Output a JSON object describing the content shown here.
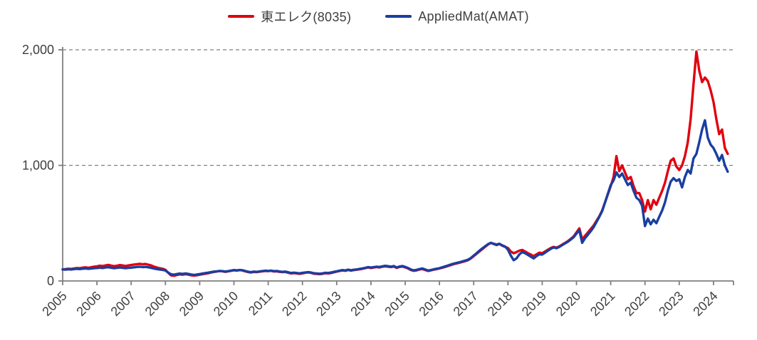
{
  "chart_data": {
    "type": "line",
    "title": "",
    "xlabel": "",
    "ylabel": "",
    "grid": "horizontal-dashed",
    "legend_position": "top-center",
    "ylim": [
      0,
      2000
    ],
    "y_ticks": [
      {
        "value": 0,
        "label": "0"
      },
      {
        "value": 1000,
        "label": "1,000"
      },
      {
        "value": 2000,
        "label": "2,000"
      }
    ],
    "x_tick_labels": [
      "2005",
      "2006",
      "2007",
      "2008",
      "2009",
      "2010",
      "2011",
      "2012",
      "2013",
      "2014",
      "2015",
      "2016",
      "2017",
      "2018",
      "2019",
      "2020",
      "2021",
      "2022",
      "2023",
      "2024"
    ],
    "x_start_year": 2005,
    "x_step": "monthly",
    "axis_color": "#7f7f7f",
    "label_color": "#3f3f3f",
    "series": [
      {
        "name": "東エレク(8035)",
        "color": "#e1000f",
        "values": [
          100,
          103,
          106,
          104,
          108,
          112,
          110,
          115,
          118,
          114,
          119,
          124,
          127,
          132,
          129,
          134,
          139,
          133,
          128,
          132,
          137,
          134,
          130,
          134,
          138,
          142,
          145,
          148,
          144,
          147,
          141,
          134,
          124,
          116,
          110,
          105,
          96,
          70,
          48,
          45,
          52,
          57,
          54,
          59,
          55,
          50,
          46,
          50,
          54,
          59,
          63,
          67,
          73,
          78,
          82,
          86,
          83,
          79,
          83,
          88,
          93,
          90,
          94,
          91,
          83,
          77,
          74,
          78,
          76,
          80,
          84,
          87,
          85,
          88,
          82,
          84,
          79,
          76,
          78,
          71,
          65,
          68,
          65,
          62,
          66,
          71,
          74,
          70,
          63,
          61,
          59,
          62,
          67,
          65,
          69,
          75,
          81,
          86,
          91,
          88,
          95,
          90,
          94,
          97,
          101,
          105,
          111,
          117,
          112,
          116,
          120,
          117,
          123,
          127,
          124,
          120,
          125,
          113,
          121,
          125,
          118,
          108,
          95,
          88,
          92,
          99,
          104,
          95,
          87,
          92,
          98,
          103,
          108,
          115,
          122,
          130,
          138,
          146,
          152,
          158,
          165,
          172,
          180,
          195,
          215,
          235,
          255,
          275,
          295,
          315,
          330,
          320,
          310,
          320,
          305,
          295,
          285,
          255,
          240,
          250,
          262,
          268,
          255,
          240,
          228,
          215,
          230,
          245,
          240,
          255,
          270,
          285,
          295,
          288,
          300,
          315,
          330,
          345,
          365,
          385,
          420,
          455,
          360,
          390,
          420,
          450,
          480,
          520,
          560,
          610,
          680,
          750,
          820,
          900,
          1080,
          950,
          1000,
          940,
          880,
          900,
          820,
          760,
          760,
          700,
          600,
          700,
          620,
          700,
          660,
          720,
          780,
          850,
          950,
          1040,
          1060,
          990,
          960,
          1000,
          1080,
          1200,
          1400,
          1700,
          1985,
          1820,
          1720,
          1760,
          1730,
          1650,
          1550,
          1400,
          1270,
          1310,
          1150,
          1100
        ]
      },
      {
        "name": "AppliedMat(AMAT)",
        "color": "#1a3ea1",
        "values": [
          100,
          98,
          101,
          99,
          103,
          105,
          103,
          106,
          108,
          105,
          107,
          110,
          112,
          115,
          112,
          116,
          119,
          114,
          110,
          113,
          116,
          113,
          110,
          113,
          115,
          118,
          121,
          123,
          120,
          122,
          118,
          113,
          107,
          103,
          99,
          96,
          90,
          72,
          58,
          54,
          60,
          64,
          61,
          65,
          61,
          56,
          52,
          56,
          60,
          64,
          68,
          72,
          77,
          81,
          84,
          87,
          85,
          82,
          85,
          90,
          94,
          92,
          95,
          93,
          86,
          80,
          77,
          81,
          79,
          83,
          86,
          89,
          87,
          90,
          85,
          87,
          82,
          79,
          81,
          75,
          69,
          72,
          69,
          66,
          70,
          74,
          77,
          73,
          67,
          65,
          63,
          66,
          71,
          69,
          73,
          79,
          84,
          89,
          94,
          91,
          98,
          93,
          97,
          100,
          104,
          108,
          114,
          120,
          116,
          120,
          124,
          121,
          127,
          131,
          128,
          124,
          129,
          117,
          125,
          129,
          122,
          112,
          99,
          92,
          96,
          103,
          108,
          99,
          90,
          95,
          101,
          106,
          111,
          118,
          126,
          134,
          142,
          150,
          156,
          162,
          169,
          176,
          184,
          199,
          220,
          240,
          262,
          282,
          300,
          318,
          330,
          322,
          315,
          322,
          308,
          298,
          270,
          220,
          180,
          195,
          230,
          250,
          240,
          225,
          210,
          195,
          215,
          230,
          228,
          245,
          262,
          278,
          290,
          283,
          295,
          310,
          325,
          340,
          358,
          378,
          410,
          440,
          330,
          370,
          400,
          430,
          465,
          510,
          555,
          605,
          680,
          755,
          830,
          870,
          940,
          900,
          930,
          880,
          830,
          850,
          780,
          720,
          700,
          650,
          475,
          540,
          490,
          530,
          500,
          555,
          610,
          680,
          780,
          860,
          890,
          865,
          880,
          810,
          900,
          960,
          930,
          1060,
          1100,
          1200,
          1310,
          1390,
          1240,
          1180,
          1150,
          1100,
          1040,
          1090,
          1000,
          945
        ]
      }
    ]
  }
}
